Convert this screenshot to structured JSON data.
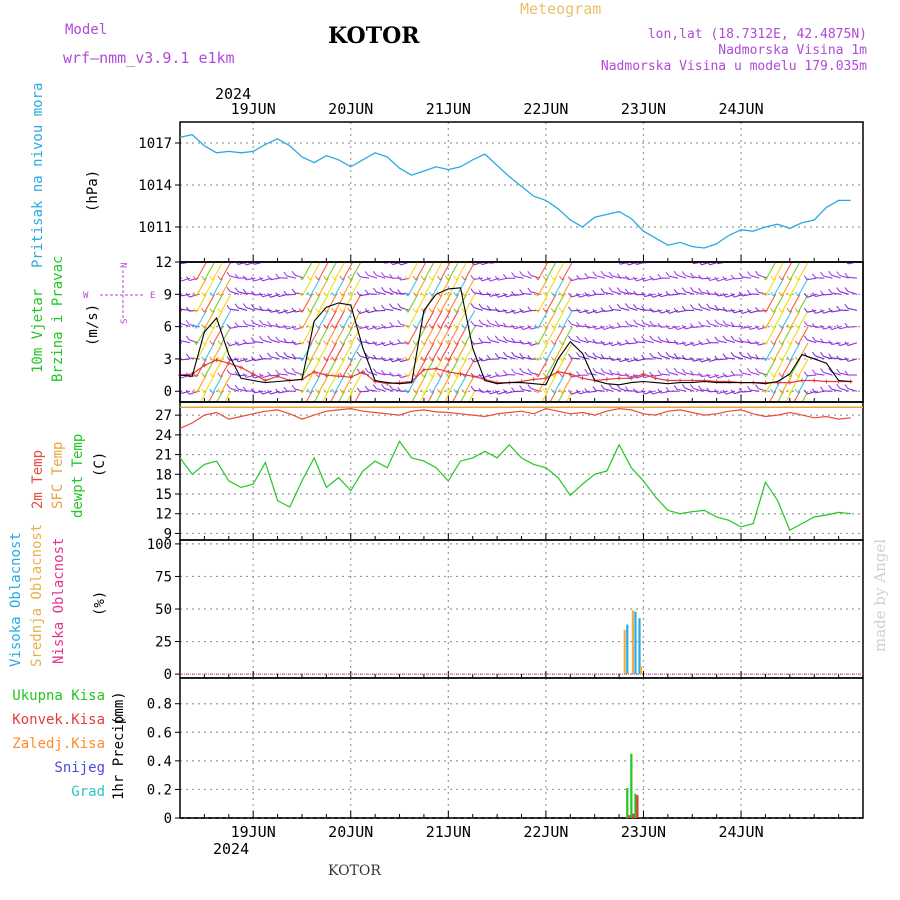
{
  "header": {
    "model_label": "Model",
    "model_version": "wrf–nmm_v3.9.1  e1km",
    "location": "KOTOR",
    "product": "Meteogram",
    "coords": "lon,lat (18.7312E, 42.4875N)",
    "elevation": "Nadmorska Visina 1m",
    "model_elevation": "Nadmorska Visina u modelu 179.035m",
    "year_top": "2024",
    "year_bottom": "2024",
    "footer_location": "KOTOR",
    "watermark": "made by Angel"
  },
  "days": [
    "19JUN",
    "20JUN",
    "21JUN",
    "22JUN",
    "23JUN",
    "24JUN"
  ],
  "compass": {
    "n": "N",
    "w": "W",
    "e": "E",
    "s": "S"
  },
  "colors": {
    "pressure": "#29aae1",
    "wind_speed": "#000000",
    "gust": "#e23c3c",
    "t2m": "#e84c3d",
    "sfc": "#e8a33d",
    "dewpt": "#22c722",
    "cloud_high": "#29aae1",
    "cloud_mid": "#e8b04b",
    "cloud_low": "#e0358e",
    "precip_total": "#22c722",
    "precip_conv": "#e23c3c",
    "precip_frozen": "#ff8c2a",
    "snow": "#4a4ae0",
    "graupel": "#2ec4c4",
    "wind_barb_calm": "#8a2be2"
  },
  "chart_data": [
    {
      "type": "line",
      "name": "pressure",
      "ylabel": "Pritisak na nivou mora",
      "unit": "(hPa)",
      "yticks": [
        1011,
        1014,
        1017
      ],
      "ylim": [
        1008.5,
        1018.5
      ],
      "x_hours": [
        0,
        3,
        6,
        9,
        12,
        15,
        18,
        21,
        24,
        27,
        30,
        33,
        36,
        39,
        42,
        45,
        48,
        51,
        54,
        57,
        60,
        63,
        66,
        69,
        72,
        75,
        78,
        81,
        84,
        87,
        90,
        93,
        96,
        99,
        102,
        105,
        108,
        111,
        114,
        117,
        120,
        123,
        126,
        129,
        132,
        135,
        138,
        141,
        144,
        147,
        150,
        153,
        156,
        159,
        162,
        165
      ],
      "values": [
        1017.4,
        1017.6,
        1016.8,
        1016.3,
        1016.4,
        1016.3,
        1016.4,
        1016.9,
        1017.3,
        1016.8,
        1016.0,
        1015.6,
        1016.1,
        1015.8,
        1015.3,
        1015.8,
        1016.3,
        1016.0,
        1015.2,
        1014.7,
        1015.0,
        1015.3,
        1015.1,
        1015.3,
        1015.8,
        1016.2,
        1015.4,
        1014.6,
        1013.9,
        1013.2,
        1012.9,
        1012.3,
        1011.5,
        1011.0,
        1011.7,
        1011.9,
        1012.1,
        1011.6,
        1010.7,
        1010.2,
        1009.7,
        1009.9,
        1009.6,
        1009.5,
        1009.8,
        1010.4,
        1010.8,
        1010.7,
        1011.0,
        1011.2,
        1010.9,
        1011.3,
        1011.5,
        1012.4,
        1012.9,
        1012.9
      ]
    },
    {
      "type": "line",
      "name": "wind",
      "ylabel": "10m Vjetar",
      "ylabel2": "Brzina i Pravac",
      "unit": "(m/s)",
      "yticks": [
        0,
        3,
        6,
        9,
        12
      ],
      "ylim": [
        -1,
        12
      ],
      "x_hours": [
        0,
        3,
        6,
        9,
        12,
        15,
        18,
        21,
        24,
        27,
        30,
        33,
        36,
        39,
        42,
        45,
        48,
        51,
        54,
        57,
        60,
        63,
        66,
        69,
        72,
        75,
        78,
        81,
        84,
        87,
        90,
        93,
        96,
        99,
        102,
        105,
        108,
        111,
        114,
        117,
        120,
        123,
        126,
        129,
        132,
        135,
        138,
        141,
        144,
        147,
        150,
        153,
        156,
        159,
        162,
        165
      ],
      "speed": [
        1.5,
        1.4,
        5.5,
        6.8,
        3.4,
        1.2,
        1.0,
        0.8,
        0.9,
        1.0,
        1.1,
        6.5,
        7.8,
        8.2,
        8.0,
        4.0,
        1.0,
        0.8,
        0.7,
        0.8,
        7.5,
        9.0,
        9.5,
        9.6,
        4.0,
        1.0,
        0.7,
        0.8,
        0.8,
        0.7,
        0.6,
        3.0,
        4.6,
        3.5,
        1.0,
        0.7,
        0.6,
        0.8,
        0.9,
        0.8,
        0.7,
        0.8,
        0.8,
        0.9,
        0.8,
        0.8,
        0.8,
        0.8,
        0.7,
        0.9,
        1.6,
        3.4,
        3.0,
        2.6,
        1.0,
        0.9
      ],
      "gust": [
        1.5,
        1.6,
        2.4,
        2.9,
        2.6,
        2.2,
        1.6,
        1.0,
        1.4,
        1.0,
        1.1,
        1.8,
        1.5,
        1.4,
        1.3,
        1.8,
        0.9,
        0.7,
        0.8,
        0.9,
        2.0,
        2.1,
        1.8,
        1.6,
        1.4,
        1.1,
        0.8,
        0.8,
        0.9,
        1.1,
        1.2,
        1.8,
        1.6,
        1.2,
        1.0,
        1.1,
        1.2,
        1.2,
        1.6,
        1.2,
        1.0,
        1.0,
        1.0,
        1.0,
        0.9,
        0.9,
        0.8,
        0.8,
        0.8,
        0.8,
        0.8,
        1.0,
        1.0,
        0.9,
        0.9,
        0.9
      ],
      "windy_bands_hours": [
        [
          5,
          14
        ],
        [
          31,
          46
        ],
        [
          58,
          74
        ],
        [
          89,
          98
        ],
        [
          146,
          156
        ]
      ]
    },
    {
      "type": "line",
      "name": "temperature",
      "ylabel": "2m Temp",
      "ylabel2": "SFC Temp",
      "ylabel3": "dewpt Temp",
      "unit": "(C)",
      "yticks": [
        9,
        12,
        15,
        18,
        21,
        24,
        27
      ],
      "ylim": [
        8,
        29
      ],
      "sfc_value": 28.2,
      "x_hours": [
        0,
        3,
        6,
        9,
        12,
        15,
        18,
        21,
        24,
        27,
        30,
        33,
        36,
        39,
        42,
        45,
        48,
        51,
        54,
        57,
        60,
        63,
        66,
        69,
        72,
        75,
        78,
        81,
        84,
        87,
        90,
        93,
        96,
        99,
        102,
        105,
        108,
        111,
        114,
        117,
        120,
        123,
        126,
        129,
        132,
        135,
        138,
        141,
        144,
        147,
        150,
        153,
        156,
        159,
        162,
        165
      ],
      "t2m": [
        25.0,
        25.8,
        27.0,
        27.4,
        26.4,
        26.8,
        27.2,
        27.6,
        27.8,
        27.2,
        26.4,
        27.0,
        27.6,
        27.8,
        28.0,
        27.6,
        27.4,
        27.2,
        27.0,
        27.6,
        27.8,
        27.5,
        27.4,
        27.2,
        27.0,
        26.8,
        27.2,
        27.4,
        27.6,
        27.2,
        28.0,
        27.6,
        27.2,
        27.4,
        27.0,
        27.6,
        28.0,
        27.8,
        27.2,
        27.0,
        27.6,
        27.8,
        27.4,
        27.0,
        27.2,
        27.6,
        27.8,
        27.2,
        26.8,
        27.0,
        27.4,
        27.0,
        26.6,
        26.8,
        26.4,
        26.6
      ],
      "dewpt": [
        20.5,
        18.0,
        19.5,
        20.0,
        17.0,
        16.0,
        16.5,
        19.8,
        14.0,
        13.0,
        17.0,
        20.5,
        16.0,
        17.5,
        15.5,
        18.5,
        20.0,
        19.0,
        23.0,
        20.5,
        20.0,
        19.0,
        17.0,
        20.0,
        20.5,
        21.5,
        20.5,
        22.5,
        20.5,
        19.5,
        19.0,
        17.5,
        14.8,
        16.5,
        18.0,
        18.5,
        22.5,
        19.0,
        17.0,
        14.5,
        12.5,
        12.0,
        12.3,
        12.5,
        11.5,
        11.0,
        10.0,
        10.5,
        16.8,
        14.0,
        9.5,
        10.5,
        11.5,
        11.8,
        12.2,
        12.0
      ]
    },
    {
      "type": "bar",
      "name": "cloud_cover",
      "ylabel": "Visoka Oblacnost",
      "ylabel2": "Srednja Oblacnost",
      "ylabel3": "Niska Oblacnost",
      "unit": "(%)",
      "yticks": [
        0,
        25,
        50,
        75,
        100
      ],
      "ylim": [
        -3,
        103
      ],
      "x_hours": [
        109,
        110,
        111,
        112,
        113
      ],
      "series": [
        {
          "name": "Visoka Oblacnost",
          "values": [
            0,
            38,
            0,
            48,
            43
          ]
        },
        {
          "name": "Srednja Oblacnost",
          "values": [
            34,
            0,
            49,
            0,
            6
          ]
        },
        {
          "name": "Niska Oblacnost",
          "values": [
            0,
            0,
            0,
            0,
            0
          ]
        }
      ]
    },
    {
      "type": "bar",
      "name": "precipitation",
      "ylabel": "1hr Precip",
      "unit": "(mm)",
      "legend": [
        "Ukupna Kisa",
        "Konvek.Kisa",
        "Zaledj.Kisa",
        "Snijeg",
        "Grad"
      ],
      "yticks": [
        0,
        0.2,
        0.4,
        0.6,
        0.8
      ],
      "yticks_labels": [
        "0",
        "0.2",
        "0.4",
        "0.6",
        "0.8"
      ],
      "ylim": [
        0,
        0.98
      ],
      "x_hours": [
        110,
        111,
        112,
        113
      ],
      "series": [
        {
          "name": "Ukupna Kisa",
          "values": [
            0.21,
            0.45,
            0.17,
            0.0
          ]
        },
        {
          "name": "Konvek.Kisa",
          "values": [
            0.02,
            0.03,
            0.16,
            0.0
          ]
        }
      ]
    }
  ]
}
